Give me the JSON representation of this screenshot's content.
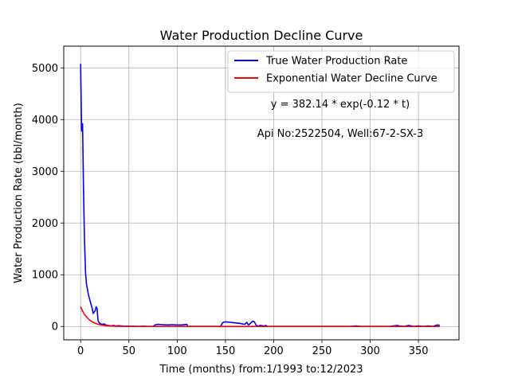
{
  "chart_data": {
    "type": "line",
    "title": "Water Production Decline Curve",
    "xlabel": "Time (months) from:1/1993 to:12/2023",
    "ylabel": "Water Production Rate (bbl/month)",
    "xlim": [
      -17.5,
      392
    ],
    "ylim": [
      -258,
      5420
    ],
    "x_ticks": [
      0,
      50,
      100,
      150,
      200,
      250,
      300,
      350
    ],
    "y_ticks": [
      0,
      1000,
      2000,
      3000,
      4000,
      5000
    ],
    "grid": true,
    "legend_position": "top-right",
    "annotations": [
      "y = 382.14 * exp(-0.12 * t)",
      "Api No:2522504, Well:67-2-SX-3"
    ],
    "series": [
      {
        "name": "True Water Production Rate",
        "color": "#0000ff",
        "x": [
          0,
          1,
          2,
          3,
          4,
          5,
          6,
          8,
          10,
          12,
          13,
          14,
          15,
          16,
          17,
          18,
          19,
          20,
          22,
          24,
          26,
          28,
          30,
          32,
          34,
          36,
          40,
          45,
          50,
          55,
          60,
          65,
          70,
          75,
          77,
          80,
          85,
          90,
          95,
          100,
          105,
          110,
          111,
          115,
          120,
          125,
          130,
          135,
          140,
          145,
          147,
          148,
          150,
          155,
          160,
          165,
          170,
          172,
          174,
          176,
          178,
          180,
          182,
          184,
          186,
          190,
          192,
          193,
          200,
          220,
          240,
          260,
          280,
          285,
          290,
          300,
          320,
          328,
          330,
          335,
          340,
          345,
          350,
          355,
          360,
          365,
          368,
          370,
          372
        ],
        "y": [
          5080,
          3780,
          3920,
          2650,
          1700,
          1050,
          820,
          620,
          480,
          350,
          250,
          280,
          300,
          380,
          350,
          120,
          80,
          60,
          40,
          50,
          30,
          20,
          15,
          10,
          20,
          10,
          15,
          5,
          5,
          5,
          0,
          5,
          0,
          0,
          30,
          40,
          35,
          30,
          35,
          30,
          30,
          40,
          0,
          0,
          0,
          0,
          0,
          0,
          0,
          0,
          70,
          80,
          90,
          80,
          70,
          60,
          40,
          80,
          30,
          60,
          100,
          90,
          20,
          10,
          20,
          10,
          20,
          0,
          0,
          0,
          0,
          0,
          0,
          10,
          0,
          0,
          0,
          20,
          10,
          0,
          20,
          0,
          10,
          0,
          10,
          0,
          20,
          30,
          20
        ]
      },
      {
        "name": "Exponential Water Decline Curve",
        "color": "#ff0000",
        "equation": {
          "a": 382.14,
          "b": 0.12
        },
        "x_range": [
          0,
          372
        ]
      }
    ]
  }
}
